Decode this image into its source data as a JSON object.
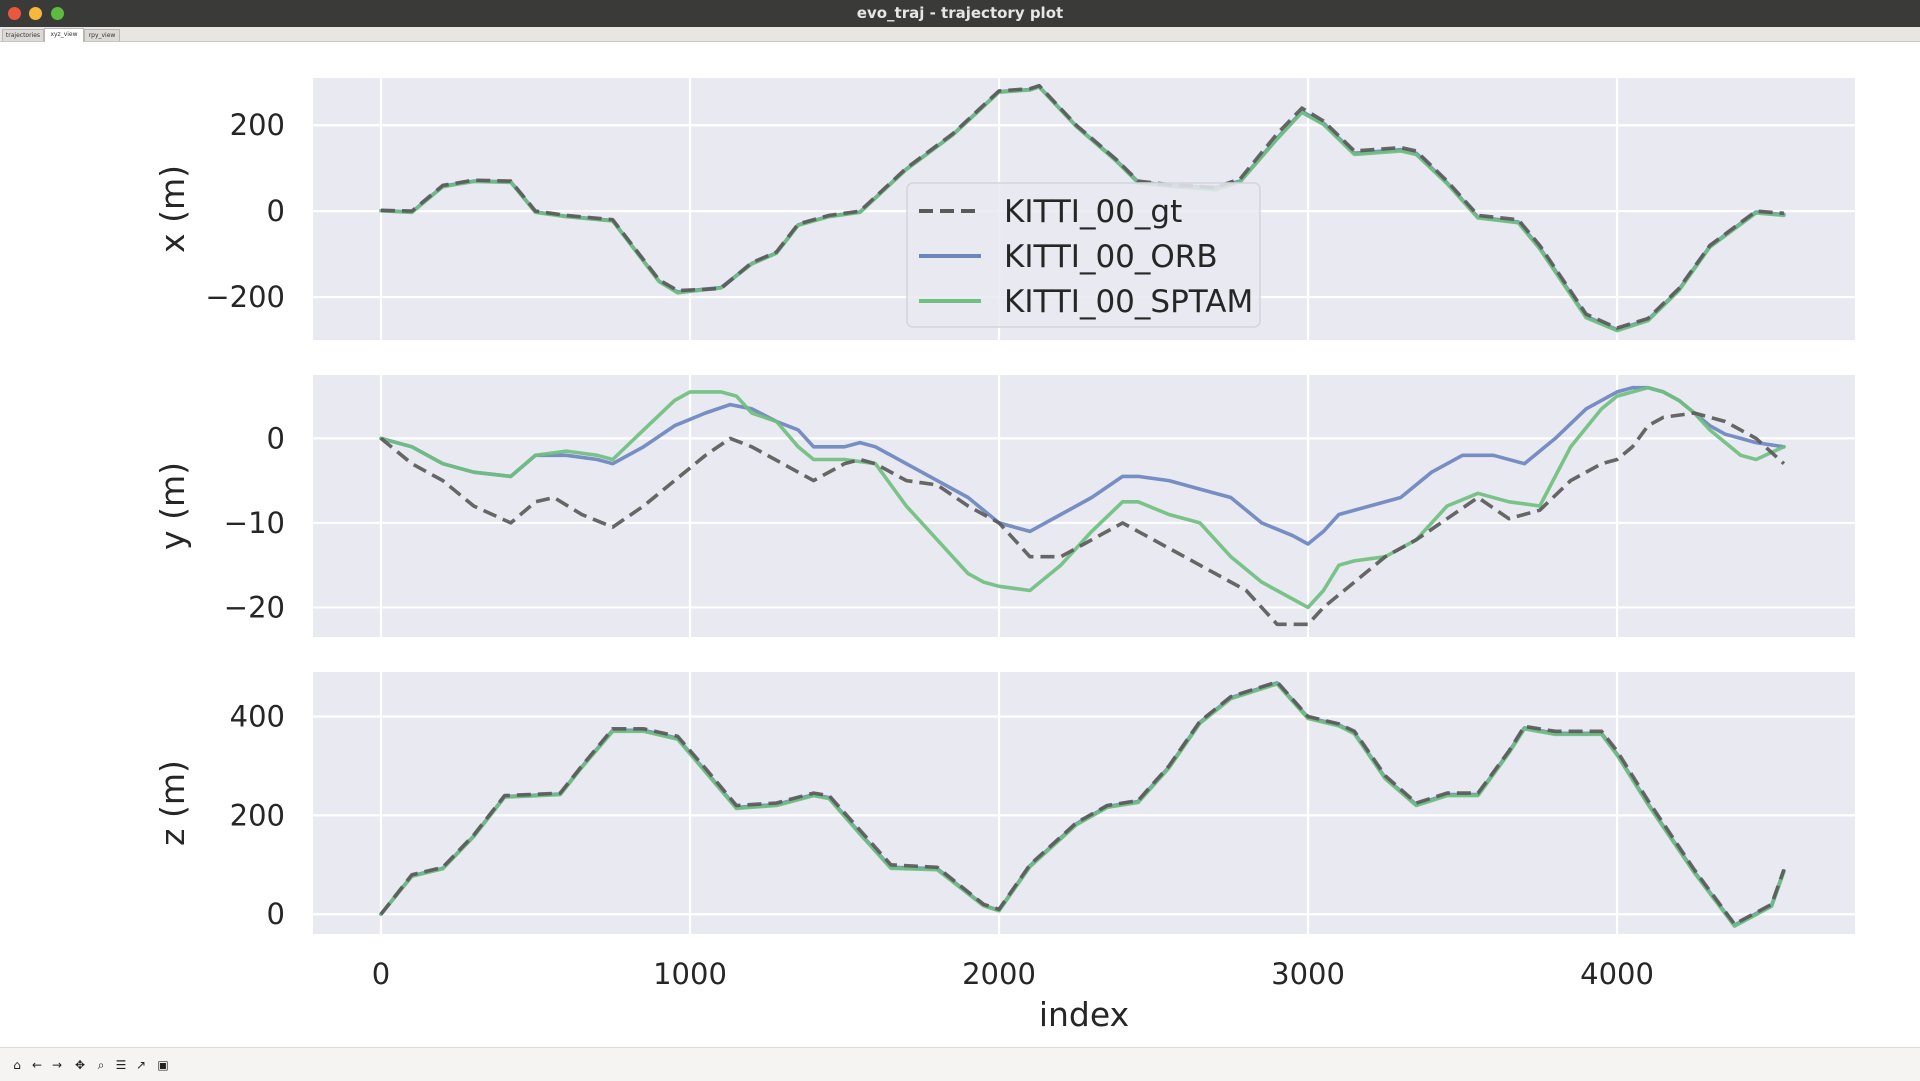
{
  "window": {
    "title": "evo_traj - trajectory plot"
  },
  "tabs": [
    {
      "label": "trajectories",
      "active": false
    },
    {
      "label": "xyz_view",
      "active": true
    },
    {
      "label": "rpy_view",
      "active": false
    }
  ],
  "toolbar": {
    "buttons": [
      "home-icon",
      "back-icon",
      "forward-icon",
      "pan-icon",
      "zoom-icon",
      "configure-subplots-icon",
      "edit-axis-icon",
      "save-icon"
    ]
  },
  "colors": {
    "gt": "#5a5a5a",
    "orb": "#6b86bf",
    "sptam": "#6fbf7f",
    "axes_bg": "#e9e9f1"
  },
  "chart_data": [
    {
      "type": "line",
      "ylabel": "x (m)",
      "xlim": [
        -220,
        4770
      ],
      "ylim": [
        -300,
        310
      ],
      "xticks": [
        0,
        1000,
        2000,
        3000,
        4000
      ],
      "yticks": [
        -200,
        0,
        200
      ],
      "ytick_labels": [
        "−200",
        "0",
        "200"
      ],
      "grid": true,
      "legend": {
        "placement": "upper center"
      },
      "series": [
        {
          "name": "KITTI_00_gt",
          "style": "dashed",
          "color": "#5a5a5a",
          "x": [
            0,
            100,
            200,
            300,
            420,
            500,
            600,
            750,
            900,
            960,
            1100,
            1200,
            1280,
            1350,
            1450,
            1550,
            1700,
            1850,
            2000,
            2100,
            2130,
            2250,
            2380,
            2450,
            2550,
            2700,
            2780,
            2900,
            2980,
            3050,
            3150,
            3300,
            3350,
            3450,
            3550,
            3680,
            3750,
            3900,
            4000,
            4100,
            4200,
            4300,
            4450,
            4540
          ],
          "y": [
            2,
            0,
            60,
            72,
            70,
            0,
            -10,
            -20,
            -160,
            -185,
            -180,
            -120,
            -95,
            -30,
            -10,
            0,
            100,
            180,
            280,
            285,
            292,
            200,
            120,
            70,
            62,
            55,
            75,
            180,
            240,
            210,
            140,
            148,
            140,
            70,
            -10,
            -20,
            -80,
            -240,
            -272,
            -250,
            -180,
            -80,
            0,
            -5
          ]
        },
        {
          "name": "KITTI_00_ORB",
          "style": "solid",
          "color": "#6b86bf",
          "x": [
            0,
            100,
            200,
            300,
            420,
            500,
            600,
            750,
            900,
            960,
            1100,
            1200,
            1280,
            1350,
            1450,
            1550,
            1700,
            1850,
            2000,
            2100,
            2130,
            2250,
            2380,
            2450,
            2550,
            2700,
            2780,
            2900,
            2980,
            3050,
            3150,
            3300,
            3350,
            3450,
            3550,
            3680,
            3750,
            3900,
            4000,
            4100,
            4200,
            4300,
            4450,
            4540
          ],
          "y": [
            1,
            -2,
            58,
            70,
            68,
            -2,
            -12,
            -22,
            -163,
            -188,
            -178,
            -122,
            -97,
            -32,
            -12,
            -2,
            98,
            178,
            278,
            283,
            290,
            198,
            118,
            68,
            60,
            55,
            70,
            170,
            232,
            205,
            135,
            143,
            135,
            66,
            -14,
            -25,
            -85,
            -245,
            -276,
            -253,
            -183,
            -82,
            -2,
            -8
          ]
        },
        {
          "name": "KITTI_00_SPTAM",
          "style": "solid",
          "color": "#6fbf7f",
          "x": [
            0,
            100,
            200,
            300,
            420,
            500,
            600,
            750,
            900,
            960,
            1100,
            1200,
            1280,
            1350,
            1450,
            1550,
            1700,
            1850,
            2000,
            2100,
            2130,
            2250,
            2380,
            2450,
            2550,
            2700,
            2780,
            2900,
            2980,
            3050,
            3150,
            3300,
            3350,
            3450,
            3550,
            3680,
            3750,
            3900,
            4000,
            4100,
            4200,
            4300,
            4450,
            4540
          ],
          "y": [
            1,
            -3,
            57,
            69,
            67,
            -3,
            -13,
            -23,
            -164,
            -190,
            -179,
            -123,
            -98,
            -33,
            -13,
            -3,
            97,
            177,
            277,
            282,
            289,
            197,
            116,
            66,
            58,
            50,
            68,
            168,
            230,
            202,
            132,
            140,
            132,
            64,
            -16,
            -27,
            -88,
            -248,
            -278,
            -255,
            -185,
            -84,
            -4,
            -10
          ]
        }
      ]
    },
    {
      "type": "line",
      "ylabel": "y (m)",
      "xlim": [
        -220,
        4770
      ],
      "ylim": [
        -23.5,
        7.5
      ],
      "xticks": [
        0,
        1000,
        2000,
        3000,
        4000
      ],
      "yticks": [
        -20,
        -10,
        0
      ],
      "ytick_labels": [
        "−20",
        "−10",
        "0"
      ],
      "grid": true,
      "series": [
        {
          "name": "KITTI_00_gt",
          "style": "dashed",
          "color": "#5a5a5a",
          "x": [
            0,
            100,
            200,
            300,
            420,
            500,
            560,
            650,
            750,
            850,
            950,
            1050,
            1130,
            1200,
            1300,
            1400,
            1500,
            1550,
            1600,
            1700,
            1800,
            1900,
            2000,
            2050,
            2100,
            2200,
            2300,
            2400,
            2450,
            2600,
            2700,
            2800,
            2900,
            3000,
            3050,
            3150,
            3250,
            3350,
            3450,
            3550,
            3650,
            3750,
            3850,
            3950,
            4000,
            4050,
            4100,
            4150,
            4250,
            4350,
            4450,
            4540
          ],
          "y": [
            0,
            -3,
            -5,
            -8,
            -10,
            -7.5,
            -7,
            -9,
            -10.5,
            -8,
            -5,
            -2,
            0,
            -1,
            -3,
            -5,
            -3,
            -2.5,
            -3,
            -5,
            -5.5,
            -8,
            -10,
            -12,
            -14,
            -14,
            -12,
            -10,
            -11,
            -14,
            -16,
            -18,
            -22,
            -22,
            -20,
            -17,
            -14,
            -12,
            -9.5,
            -7,
            -9.5,
            -8.5,
            -5,
            -3,
            -2.5,
            -1,
            1.5,
            2.5,
            3,
            2,
            0,
            -3
          ]
        },
        {
          "name": "KITTI_00_ORB",
          "style": "solid",
          "color": "#6b86bf",
          "x": [
            0,
            100,
            200,
            300,
            420,
            500,
            600,
            700,
            750,
            850,
            950,
            1050,
            1130,
            1200,
            1280,
            1350,
            1400,
            1500,
            1550,
            1600,
            1700,
            1800,
            1900,
            2000,
            2100,
            2200,
            2300,
            2400,
            2450,
            2550,
            2650,
            2750,
            2850,
            2950,
            3000,
            3050,
            3100,
            3200,
            3300,
            3400,
            3500,
            3600,
            3700,
            3800,
            3900,
            4000,
            4050,
            4100,
            4150,
            4200,
            4250,
            4300,
            4350,
            4400,
            4450,
            4540
          ],
          "y": [
            0,
            -1,
            -3,
            -4,
            -4.5,
            -2,
            -2,
            -2.5,
            -3,
            -1,
            1.5,
            3,
            4,
            3.5,
            2,
            1,
            -1,
            -1,
            -0.5,
            -1,
            -3,
            -5,
            -7,
            -10,
            -11,
            -9,
            -7,
            -4.5,
            -4.5,
            -5,
            -6,
            -7,
            -10,
            -11.5,
            -12.5,
            -11,
            -9,
            -8,
            -7,
            -4,
            -2,
            -2,
            -3,
            0,
            3.5,
            5.5,
            6,
            6,
            5.5,
            4.5,
            3,
            1.5,
            0.5,
            0,
            -0.5,
            -1
          ]
        },
        {
          "name": "KITTI_00_SPTAM",
          "style": "solid",
          "color": "#6fbf7f",
          "x": [
            0,
            100,
            200,
            300,
            420,
            500,
            600,
            700,
            750,
            850,
            950,
            1000,
            1100,
            1150,
            1200,
            1280,
            1350,
            1400,
            1500,
            1600,
            1700,
            1800,
            1900,
            1950,
            2000,
            2100,
            2200,
            2300,
            2400,
            2450,
            2550,
            2650,
            2750,
            2850,
            2950,
            3000,
            3050,
            3100,
            3150,
            3250,
            3350,
            3450,
            3550,
            3650,
            3750,
            3850,
            3950,
            4000,
            4050,
            4100,
            4150,
            4200,
            4250,
            4300,
            4400,
            4450,
            4540
          ],
          "y": [
            0,
            -1,
            -3,
            -4,
            -4.5,
            -2,
            -1.5,
            -2,
            -2.5,
            1,
            4.5,
            5.5,
            5.5,
            5,
            3,
            2,
            -1,
            -2.5,
            -2.5,
            -3,
            -8,
            -12,
            -16,
            -17,
            -17.5,
            -18,
            -15,
            -11,
            -7.5,
            -7.5,
            -9,
            -10,
            -14,
            -17,
            -19,
            -20,
            -18,
            -15,
            -14.5,
            -14,
            -12,
            -8,
            -6.5,
            -7.5,
            -8,
            -1,
            3.5,
            5,
            5.5,
            6,
            5.5,
            4.5,
            3,
            1,
            -2,
            -2.5,
            -1
          ]
        }
      ]
    },
    {
      "type": "line",
      "ylabel": "z (m)",
      "xlabel": "index",
      "xlim": [
        -220,
        4770
      ],
      "ylim": [
        -40,
        490
      ],
      "xticks": [
        0,
        1000,
        2000,
        3000,
        4000
      ],
      "xtick_labels": [
        "0",
        "1000",
        "2000",
        "3000",
        "4000"
      ],
      "yticks": [
        0,
        200,
        400
      ],
      "ytick_labels": [
        "0",
        "200",
        "400"
      ],
      "grid": true,
      "series": [
        {
          "name": "KITTI_00_gt",
          "style": "dashed",
          "color": "#5a5a5a",
          "x": [
            0,
            100,
            200,
            300,
            400,
            480,
            580,
            650,
            750,
            850,
            960,
            1050,
            1150,
            1280,
            1400,
            1450,
            1550,
            1650,
            1800,
            1950,
            2000,
            2100,
            2250,
            2350,
            2450,
            2550,
            2650,
            2750,
            2850,
            2900,
            3000,
            3100,
            3150,
            3250,
            3350,
            3450,
            3550,
            3650,
            3700,
            3800,
            3950,
            4000,
            4100,
            4250,
            4380,
            4500,
            4540
          ],
          "y": [
            0,
            80,
            95,
            160,
            240,
            242,
            245,
            300,
            375,
            375,
            360,
            295,
            220,
            225,
            245,
            240,
            170,
            100,
            95,
            20,
            10,
            100,
            185,
            220,
            230,
            300,
            390,
            440,
            460,
            470,
            400,
            385,
            370,
            280,
            225,
            245,
            245,
            330,
            380,
            370,
            370,
            330,
            230,
            90,
            -20,
            20,
            90
          ]
        },
        {
          "name": "KITTI_00_ORB",
          "style": "solid",
          "color": "#6b86bf",
          "x": [
            0,
            100,
            200,
            300,
            400,
            480,
            580,
            650,
            750,
            850,
            960,
            1050,
            1150,
            1280,
            1400,
            1450,
            1550,
            1650,
            1800,
            1950,
            2000,
            2100,
            2250,
            2350,
            2450,
            2550,
            2650,
            2750,
            2850,
            2900,
            3000,
            3100,
            3150,
            3250,
            3350,
            3450,
            3550,
            3650,
            3700,
            3800,
            3950,
            4000,
            4100,
            4250,
            4380,
            4500,
            4540
          ],
          "y": [
            0,
            78,
            93,
            158,
            238,
            240,
            243,
            298,
            372,
            372,
            356,
            290,
            216,
            222,
            242,
            236,
            164,
            95,
            92,
            18,
            8,
            98,
            183,
            218,
            228,
            298,
            388,
            438,
            458,
            468,
            398,
            383,
            367,
            276,
            222,
            242,
            242,
            328,
            377,
            366,
            366,
            324,
            224,
            86,
            -22,
            18,
            88
          ]
        },
        {
          "name": "KITTI_00_SPTAM",
          "style": "solid",
          "color": "#6fbf7f",
          "x": [
            0,
            100,
            200,
            300,
            400,
            480,
            580,
            650,
            750,
            850,
            960,
            1050,
            1150,
            1280,
            1400,
            1450,
            1550,
            1650,
            1800,
            1950,
            2000,
            2100,
            2250,
            2350,
            2450,
            2550,
            2650,
            2750,
            2850,
            2900,
            3000,
            3100,
            3150,
            3250,
            3350,
            3450,
            3550,
            3650,
            3700,
            3800,
            3950,
            4000,
            4100,
            4250,
            4380,
            4500,
            4540
          ],
          "y": [
            0,
            77,
            92,
            157,
            237,
            239,
            242,
            297,
            370,
            370,
            354,
            288,
            214,
            220,
            240,
            234,
            162,
            93,
            90,
            17,
            7,
            96,
            181,
            216,
            226,
            296,
            386,
            436,
            456,
            466,
            396,
            381,
            365,
            274,
            220,
            240,
            240,
            326,
            375,
            364,
            364,
            322,
            222,
            84,
            -24,
            16,
            86
          ]
        }
      ]
    }
  ]
}
